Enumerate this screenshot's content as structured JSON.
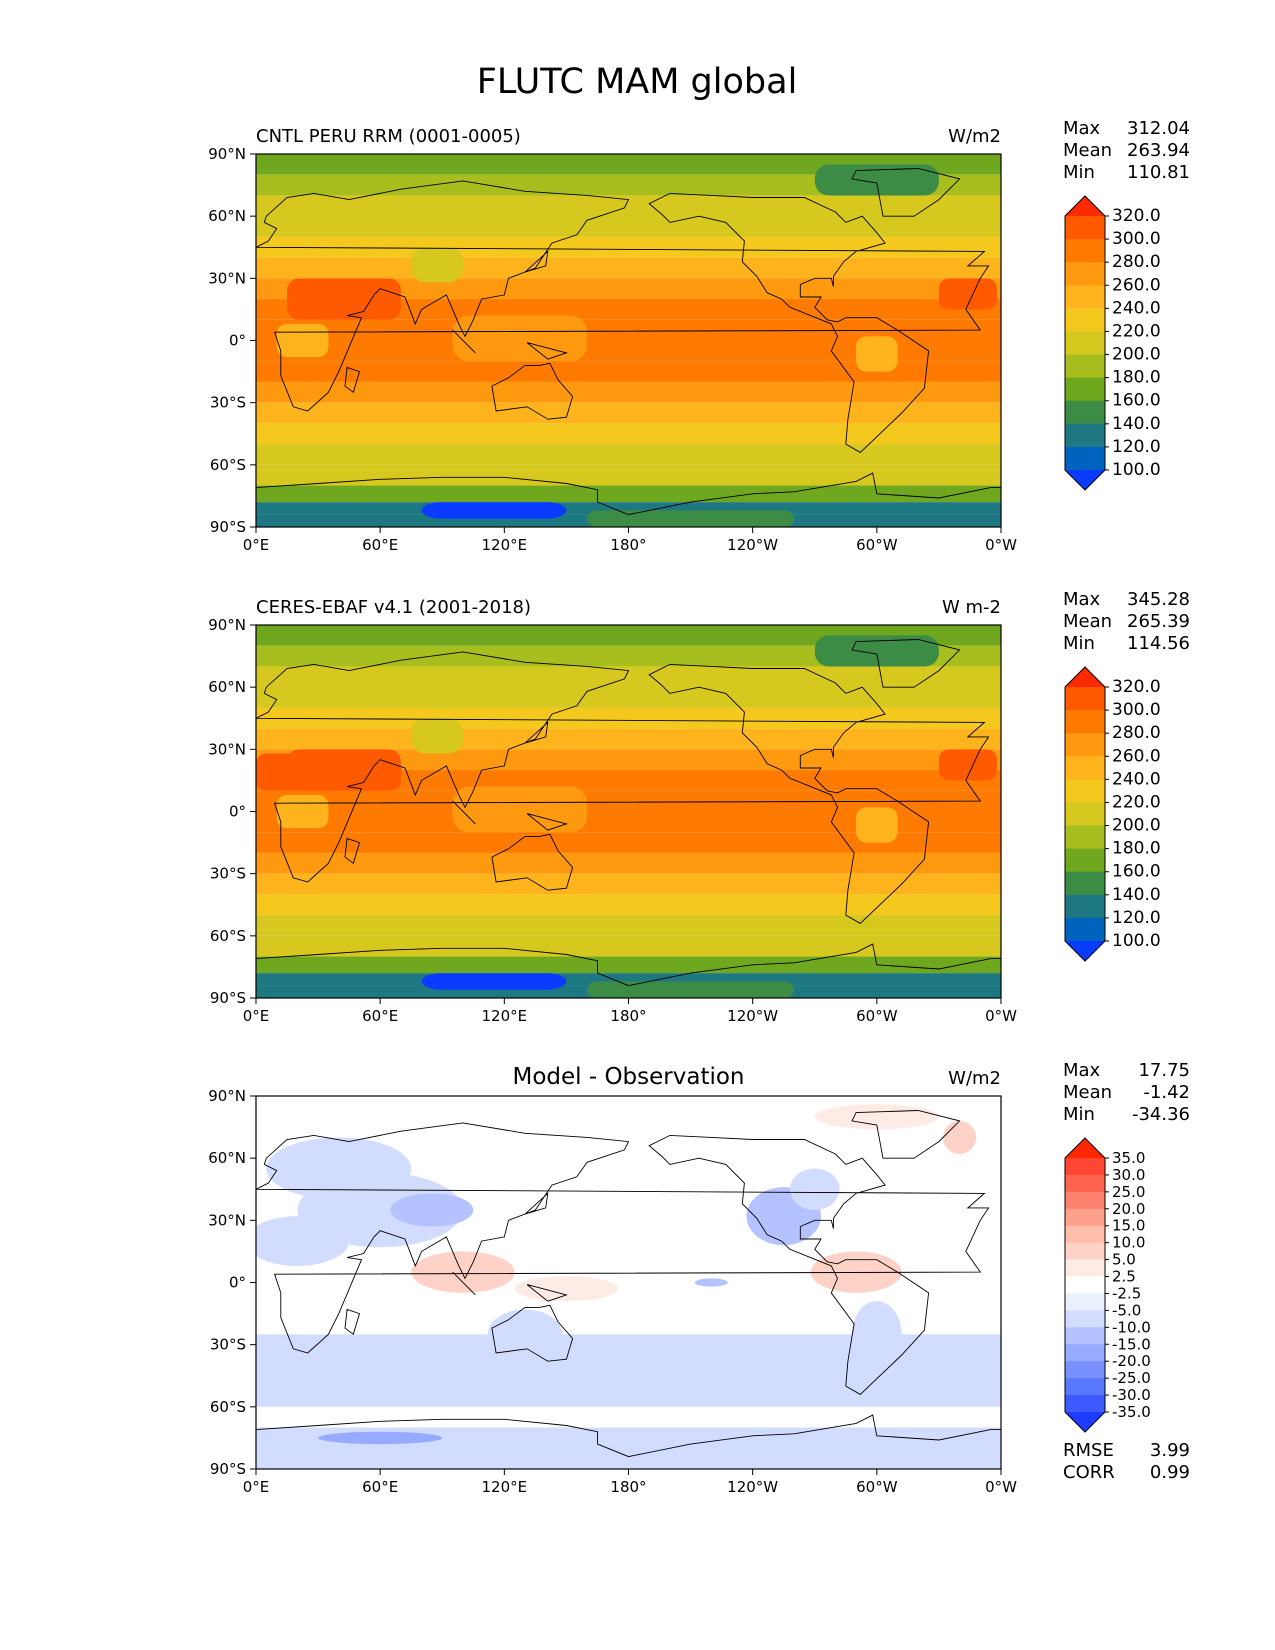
{
  "figure_title": "FLUTC MAM global",
  "lon_ticks": [
    "0°E",
    "60°E",
    "120°E",
    "180°",
    "120°W",
    "60°W",
    "0°W"
  ],
  "lat_ticks": [
    "90°N",
    "60°N",
    "30°N",
    "0°",
    "30°S",
    "60°S",
    "90°S"
  ],
  "stat_labels": {
    "max": "Max",
    "mean": "Mean",
    "min": "Min",
    "rmse": "RMSE",
    "corr": "CORR"
  },
  "panels": [
    {
      "title": "CNTL PERU RRM (0001-0005)",
      "title_position": "left",
      "units": "W/m2",
      "stats": {
        "max": "312.04",
        "mean": "263.94",
        "min": "110.81"
      },
      "colorbar": {
        "levels": [
          "320.0",
          "300.0",
          "280.0",
          "260.0",
          "240.0",
          "220.0",
          "200.0",
          "180.0",
          "160.0",
          "140.0",
          "120.0",
          "100.0"
        ],
        "colors": [
          "#FF2A00",
          "#FF5A00",
          "#FF7A00",
          "#FF9A10",
          "#FFB41E",
          "#F5C81E",
          "#D6C81E",
          "#A8BE1E",
          "#6FA81E",
          "#3C8C46",
          "#1E7882",
          "#0064BE",
          "#0A3CFF"
        ]
      },
      "field": "cntl"
    },
    {
      "title": "CERES-EBAF v4.1 (2001-2018)",
      "title_position": "left",
      "units": "W m-2",
      "stats": {
        "max": "345.28",
        "mean": "265.39",
        "min": "114.56"
      },
      "colorbar": {
        "levels": [
          "320.0",
          "300.0",
          "280.0",
          "260.0",
          "240.0",
          "220.0",
          "200.0",
          "180.0",
          "160.0",
          "140.0",
          "120.0",
          "100.0"
        ],
        "colors": [
          "#FF2A00",
          "#FF5A00",
          "#FF7A00",
          "#FF9A10",
          "#FFB41E",
          "#F5C81E",
          "#D6C81E",
          "#A8BE1E",
          "#6FA81E",
          "#3C8C46",
          "#1E7882",
          "#0064BE",
          "#0A3CFF"
        ]
      },
      "field": "obs"
    },
    {
      "title": "Model - Observation",
      "title_position": "center",
      "units": "W/m2",
      "stats": {
        "max": "17.75",
        "mean": "-1.42",
        "min": "-34.36",
        "rmse": "3.99",
        "corr": "0.99"
      },
      "colorbar": {
        "levels": [
          "35.0",
          "30.0",
          "25.0",
          "20.0",
          "15.0",
          "10.0",
          "5.0",
          "2.5",
          "-2.5",
          "-5.0",
          "-10.0",
          "-15.0",
          "-20.0",
          "-25.0",
          "-30.0",
          "-35.0"
        ],
        "colors": [
          "#FF2800",
          "#FF4632",
          "#FF6450",
          "#FF826E",
          "#FFA08C",
          "#FFBEAA",
          "#FFD2C8",
          "#FFEBE6",
          "#FFFFFF",
          "#EBF0FF",
          "#D2DCFF",
          "#B4C3FF",
          "#96AAFF",
          "#7891FF",
          "#5A78FF",
          "#3C5AFF",
          "#1E3CFF"
        ]
      },
      "field": "diff"
    }
  ],
  "chart_data": [
    {
      "type": "heatmap",
      "title": "CNTL PERU RRM (0001-0005)",
      "units": "W/m2",
      "x_range": [
        0,
        360
      ],
      "y_range": [
        -90,
        90
      ],
      "max": 312.04,
      "mean": 263.94,
      "min": 110.81
    },
    {
      "type": "heatmap",
      "title": "CERES-EBAF v4.1 (2001-2018)",
      "units": "W m-2",
      "x_range": [
        0,
        360
      ],
      "y_range": [
        -90,
        90
      ],
      "max": 345.28,
      "mean": 265.39,
      "min": 114.56
    },
    {
      "type": "heatmap",
      "title": "Model - Observation",
      "units": "W/m2",
      "x_range": [
        0,
        360
      ],
      "y_range": [
        -90,
        90
      ],
      "max": 17.75,
      "mean": -1.42,
      "min": -34.36,
      "rmse": 3.99,
      "corr": 0.99
    }
  ]
}
